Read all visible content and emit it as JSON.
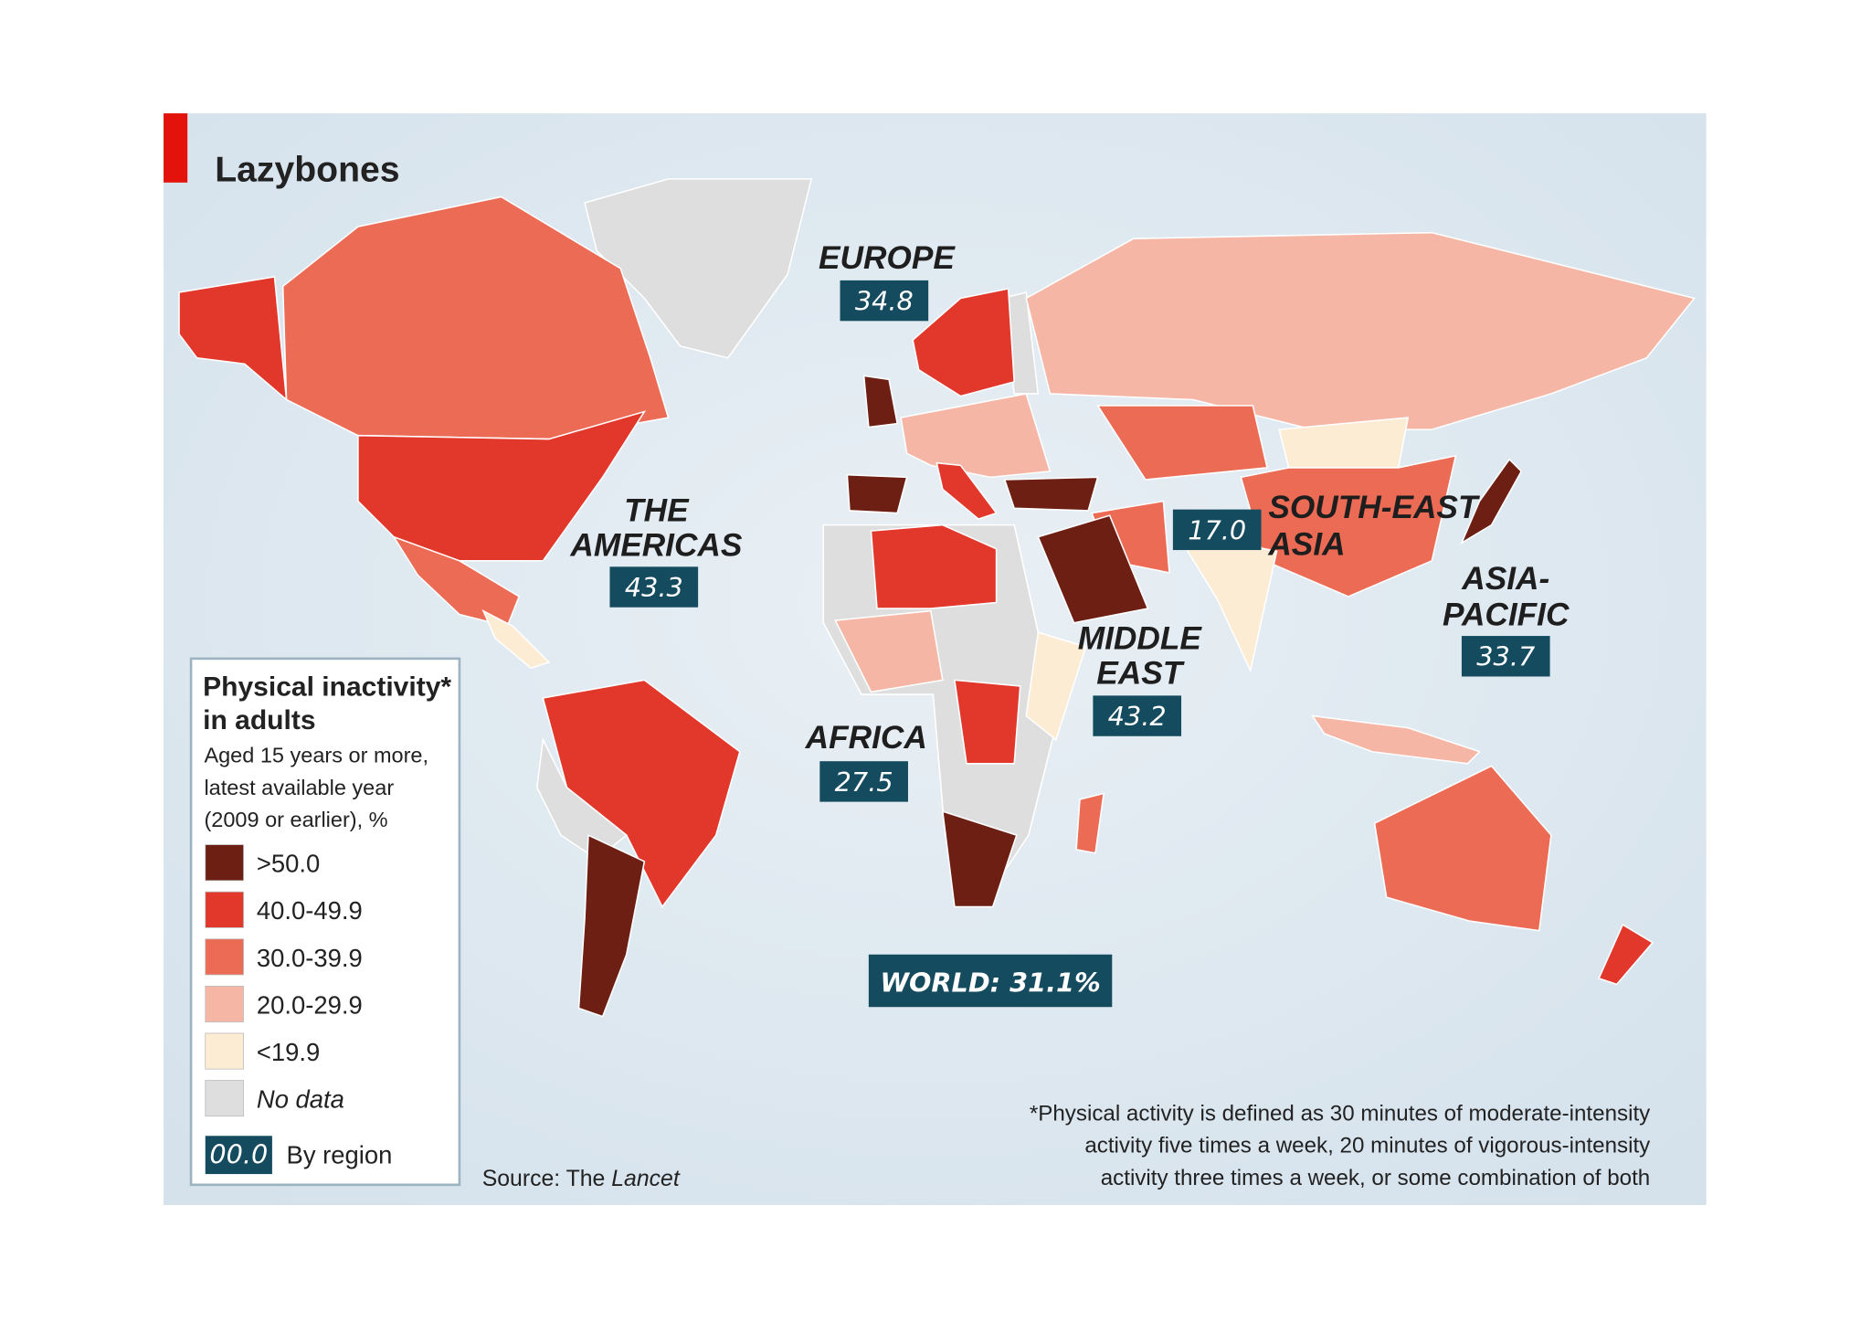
{
  "title": "Lazybones",
  "regions": [
    {
      "name_lines": [
        "EUROPE"
      ],
      "value": "34.8"
    },
    {
      "name_lines": [
        "THE",
        "AMERICAS"
      ],
      "value": "43.3"
    },
    {
      "name_lines": [
        "SOUTH-EAST",
        "ASIA"
      ],
      "value": "17.0"
    },
    {
      "name_lines": [
        "ASIA-",
        "PACIFIC"
      ],
      "value": "33.7"
    },
    {
      "name_lines": [
        "MIDDLE",
        "EAST"
      ],
      "value": "43.2"
    },
    {
      "name_lines": [
        "AFRICA"
      ],
      "value": "27.5"
    }
  ],
  "world": "WORLD: 31.1%",
  "legend": {
    "title_lines": [
      "Physical inactivity*",
      "in adults"
    ],
    "subtitle_lines": [
      "Aged 15 years or more,",
      "latest available year",
      "(2009 or earlier), %"
    ],
    "items": [
      {
        "label": ">50.0",
        "color": "#6e1f14"
      },
      {
        "label": "40.0-49.9",
        "color": "#e2372b"
      },
      {
        "label": "30.0-39.9",
        "color": "#ec6b55"
      },
      {
        "label": "20.0-29.9",
        "color": "#f6b6a5"
      },
      {
        "label": "<19.9",
        "color": "#fdecd4"
      },
      {
        "label": "No data",
        "color": "#dedede"
      }
    ],
    "region_key": {
      "sample": "00.0",
      "label": "By region"
    }
  },
  "source": {
    "prefix": "Source: The",
    "publication": "Lancet"
  },
  "footnote_lines": [
    "*Physical activity is defined as 30 minutes of moderate-intensity",
    "activity five times a week, 20 minutes of vigorous-intensity",
    "activity three times a week, or some combination of both"
  ]
}
